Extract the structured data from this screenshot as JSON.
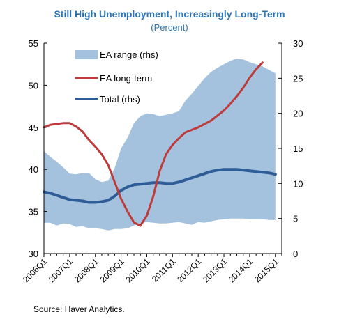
{
  "chart_data": {
    "type": "area",
    "title": "Still High Unemployment, Increasingly Long-Term",
    "subtitle": "(Percent)",
    "source": "Source: Haver Analytics.",
    "x_labels": [
      "2006Q1",
      "2007Q1",
      "2008Q1",
      "2009Q1",
      "2010Q1",
      "2011Q1",
      "2012Q1",
      "2013Q1",
      "2014Q1",
      "2015Q1"
    ],
    "left_axis": {
      "min": 30,
      "max": 55,
      "ticks": [
        30,
        35,
        40,
        45,
        50,
        55
      ]
    },
    "right_axis": {
      "min": 0,
      "max": 30,
      "ticks": [
        0,
        5,
        10,
        15,
        20,
        25,
        30
      ]
    },
    "series": [
      {
        "name": "EA range (rhs)",
        "type": "band",
        "axis": "right",
        "x": [
          2006.0,
          2006.25,
          2006.5,
          2006.75,
          2007.0,
          2007.25,
          2007.5,
          2007.75,
          2008.0,
          2008.25,
          2008.5,
          2008.75,
          2009.0,
          2009.25,
          2009.5,
          2009.75,
          2010.0,
          2010.25,
          2010.5,
          2010.75,
          2011.0,
          2011.25,
          2011.5,
          2011.75,
          2012.0,
          2012.25,
          2012.5,
          2012.75,
          2013.0,
          2013.25,
          2013.5,
          2013.75,
          2014.0,
          2014.25,
          2014.5,
          2014.75,
          2015.0
        ],
        "lower": [
          4.4,
          4.4,
          4.0,
          4.3,
          4.2,
          3.8,
          3.9,
          3.6,
          3.6,
          3.5,
          3.3,
          3.5,
          3.5,
          3.6,
          4.0,
          4.3,
          4.5,
          4.4,
          4.3,
          4.3,
          4.4,
          4.5,
          4.3,
          4.1,
          4.5,
          4.4,
          4.6,
          4.8,
          4.9,
          5.0,
          5.0,
          5.0,
          4.9,
          4.9,
          4.9,
          4.8,
          4.8
        ],
        "upper": [
          14.6,
          13.8,
          13.1,
          12.3,
          11.4,
          11.3,
          11.5,
          11.5,
          10.6,
          10.2,
          10.4,
          12.2,
          15.0,
          16.5,
          18.6,
          19.6,
          20.0,
          19.9,
          19.6,
          19.8,
          20.0,
          20.3,
          21.8,
          22.8,
          23.9,
          25.0,
          25.9,
          26.5,
          27.0,
          27.5,
          27.8,
          27.7,
          27.3,
          27.0,
          26.7,
          26.2,
          25.7
        ]
      },
      {
        "name": "EA long-term",
        "type": "line",
        "axis": "left",
        "x": [
          2006.0,
          2006.25,
          2006.5,
          2006.75,
          2007.0,
          2007.25,
          2007.5,
          2007.75,
          2008.0,
          2008.25,
          2008.5,
          2008.75,
          2009.0,
          2009.25,
          2009.5,
          2009.75,
          2010.0,
          2010.25,
          2010.5,
          2010.75,
          2011.0,
          2011.25,
          2011.5,
          2011.75,
          2012.0,
          2012.25,
          2012.5,
          2012.75,
          2013.0,
          2013.25,
          2013.5,
          2013.75,
          2014.0,
          2014.25,
          2014.5
        ],
        "values": [
          45.0,
          45.3,
          45.4,
          45.5,
          45.5,
          45.1,
          44.5,
          43.5,
          42.7,
          41.8,
          40.5,
          38.5,
          36.5,
          35.0,
          33.7,
          33.3,
          34.5,
          36.8,
          39.8,
          41.8,
          42.9,
          43.7,
          44.4,
          44.7,
          45.0,
          45.4,
          45.8,
          46.4,
          47.0,
          47.8,
          48.7,
          49.7,
          50.9,
          51.9,
          52.7
        ]
      },
      {
        "name": "Total (rhs)",
        "type": "line",
        "axis": "right",
        "x": [
          2006.0,
          2006.25,
          2006.5,
          2006.75,
          2007.0,
          2007.25,
          2007.5,
          2007.75,
          2008.0,
          2008.25,
          2008.5,
          2008.75,
          2009.0,
          2009.25,
          2009.5,
          2009.75,
          2010.0,
          2010.25,
          2010.5,
          2010.75,
          2011.0,
          2011.25,
          2011.5,
          2011.75,
          2012.0,
          2012.25,
          2012.5,
          2012.75,
          2013.0,
          2013.25,
          2013.5,
          2013.75,
          2014.0,
          2014.25,
          2014.5,
          2014.75,
          2015.0
        ],
        "values": [
          8.8,
          8.6,
          8.3,
          8.0,
          7.7,
          7.6,
          7.5,
          7.3,
          7.3,
          7.4,
          7.6,
          8.2,
          9.0,
          9.5,
          9.8,
          9.9,
          10.0,
          10.1,
          10.1,
          10.0,
          10.0,
          10.2,
          10.5,
          10.8,
          11.1,
          11.4,
          11.7,
          11.9,
          12.0,
          12.0,
          12.0,
          11.9,
          11.8,
          11.7,
          11.6,
          11.5,
          11.3
        ]
      }
    ],
    "legend": {
      "placement": "top-left",
      "entries": [
        "EA range (rhs)",
        "EA long-term",
        "Total (rhs)"
      ]
    },
    "grid": false
  },
  "colors": {
    "title": "#2e74b5",
    "subtitle": "#2e74b5",
    "band": "#a4c2de",
    "long_term": "#be3b3b",
    "total": "#2e5c96",
    "axis": "#000000"
  }
}
